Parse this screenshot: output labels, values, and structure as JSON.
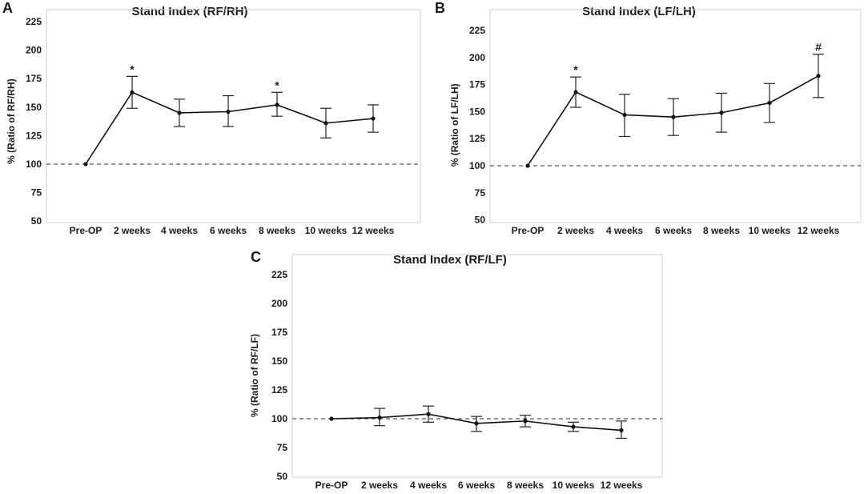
{
  "chart_data": [
    {
      "panel": "A",
      "type": "line",
      "title": "Stand Index (RF/RH)",
      "xlabel": "",
      "ylabel": "% (Ratio of RF/RH)",
      "categories": [
        "Pre-OP",
        "2 weeks",
        "4 weeks",
        "6 weeks",
        "8 weeks",
        "10 weeks",
        "12 weeks"
      ],
      "yticks": [
        "50",
        "75",
        "100",
        "125",
        "150",
        "175",
        "200",
        "225"
      ],
      "ylim": [
        50,
        240
      ],
      "reference_line": 100,
      "series": [
        {
          "name": "Stand Index (RF/RH)",
          "values": [
            100,
            163,
            145,
            146,
            152,
            136,
            140
          ],
          "error_low": [
            100,
            149,
            133,
            133,
            142,
            123,
            128
          ],
          "error_high": [
            100,
            177,
            157,
            160,
            163,
            149,
            152
          ]
        }
      ],
      "annotations": [
        {
          "category": "2 weeks",
          "label": "*"
        },
        {
          "category": "8 weeks",
          "label": "*"
        }
      ]
    },
    {
      "panel": "B",
      "type": "line",
      "title": "Stand Index (LF/LH)",
      "xlabel": "",
      "ylabel": "% (Ratio of LF/LH)",
      "categories": [
        "Pre-OP",
        "2 weeks",
        "4 weeks",
        "6 weeks",
        "8 weeks",
        "10 weeks",
        "12 weeks"
      ],
      "yticks": [
        "50",
        "75",
        "100",
        "125",
        "150",
        "175",
        "200",
        "225"
      ],
      "ylim": [
        50,
        245
      ],
      "reference_line": 100,
      "series": [
        {
          "name": "Stand Index (LF/LH)",
          "values": [
            100,
            168,
            147,
            145,
            149,
            158,
            183
          ],
          "error_low": [
            100,
            154,
            127,
            128,
            131,
            140,
            163
          ],
          "error_high": [
            100,
            182,
            166,
            162,
            167,
            176,
            203
          ]
        }
      ],
      "annotations": [
        {
          "category": "2 weeks",
          "label": "*"
        },
        {
          "category": "12 weeks",
          "label": "#"
        }
      ]
    },
    {
      "panel": "C",
      "type": "line",
      "title": "Stand Index (RF/LF)",
      "xlabel": "",
      "ylabel": "% (Ratio of RF/LF)",
      "categories": [
        "Pre-OP",
        "2 weeks",
        "4 weeks",
        "6 weeks",
        "8 weeks",
        "10 weeks",
        "12 weeks"
      ],
      "yticks": [
        "50",
        "75",
        "100",
        "125",
        "150",
        "175",
        "200",
        "225"
      ],
      "ylim": [
        50,
        240
      ],
      "reference_line": 100,
      "series": [
        {
          "name": "Stand Index (RF/LF)",
          "values": [
            100,
            101,
            104,
            96,
            98,
            93,
            90
          ],
          "error_low": [
            100,
            94,
            97,
            89,
            93,
            89,
            83
          ],
          "error_high": [
            100,
            109,
            111,
            102,
            103,
            97,
            98
          ]
        }
      ],
      "annotations": []
    }
  ]
}
